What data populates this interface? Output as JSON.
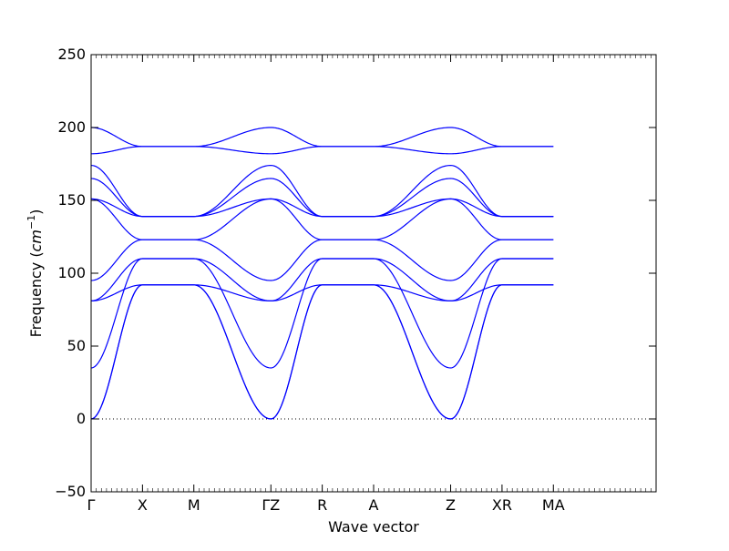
{
  "chart_data": {
    "type": "line",
    "title": "",
    "xlabel": "Wave vector",
    "ylabel": "Frequency (cm⁻¹)",
    "ylabel_parts": {
      "prefix": "Frequency (",
      "unit": "cm",
      "exponent": "−1",
      "suffix": ")"
    },
    "ylim": [
      -50,
      250
    ],
    "yticks": [
      -50,
      0,
      50,
      100,
      150,
      200,
      250
    ],
    "ytick_labels": [
      "−50",
      "0",
      "50",
      "100",
      "150",
      "200",
      "250"
    ],
    "x_kpath": [
      "Γ",
      "X",
      "M",
      "Γ",
      "Z",
      "R",
      "A",
      "Z",
      "X",
      "R",
      "M",
      "A"
    ],
    "xtick_labels": [
      "Γ",
      "X",
      "M",
      "ΓZ",
      "R",
      "A",
      "Z",
      "XR",
      "MA"
    ],
    "xlim": [
      0,
      11
    ],
    "zero_line": {
      "y": 0,
      "style": "dotted"
    },
    "grid": false,
    "line_color": "#0000ff",
    "series": [
      {
        "values": [
          0,
          92,
          92,
          0,
          0,
          92,
          92,
          0,
          92,
          92,
          92,
          92
        ]
      },
      {
        "values": [
          0,
          92,
          92,
          0,
          0,
          92,
          92,
          0,
          92,
          92,
          92,
          92
        ]
      },
      {
        "values": [
          35,
          110,
          110,
          35,
          35,
          110,
          110,
          35,
          110,
          110,
          110,
          110
        ]
      },
      {
        "values": [
          81,
          110,
          110,
          81,
          81,
          110,
          110,
          81,
          110,
          110,
          110,
          110
        ]
      },
      {
        "values": [
          81,
          92,
          92,
          81,
          81,
          92,
          92,
          81,
          92,
          92,
          92,
          92
        ]
      },
      {
        "values": [
          95,
          123,
          123,
          95,
          95,
          123,
          123,
          95,
          123,
          123,
          123,
          123
        ]
      },
      {
        "values": [
          151,
          123,
          123,
          151,
          151,
          123,
          123,
          151,
          123,
          123,
          123,
          123
        ]
      },
      {
        "values": [
          151,
          139,
          139,
          151,
          151,
          139,
          139,
          151,
          139,
          139,
          139,
          139
        ]
      },
      {
        "values": [
          165,
          139,
          139,
          165,
          165,
          139,
          139,
          165,
          139,
          139,
          139,
          139
        ]
      },
      {
        "values": [
          174,
          139,
          139,
          174,
          174,
          139,
          139,
          174,
          139,
          139,
          139,
          139
        ]
      },
      {
        "values": [
          182,
          187,
          187,
          182,
          182,
          187,
          187,
          182,
          187,
          187,
          187,
          187
        ]
      },
      {
        "values": [
          200,
          187,
          187,
          200,
          200,
          187,
          187,
          200,
          187,
          187,
          187,
          187
        ]
      }
    ]
  }
}
